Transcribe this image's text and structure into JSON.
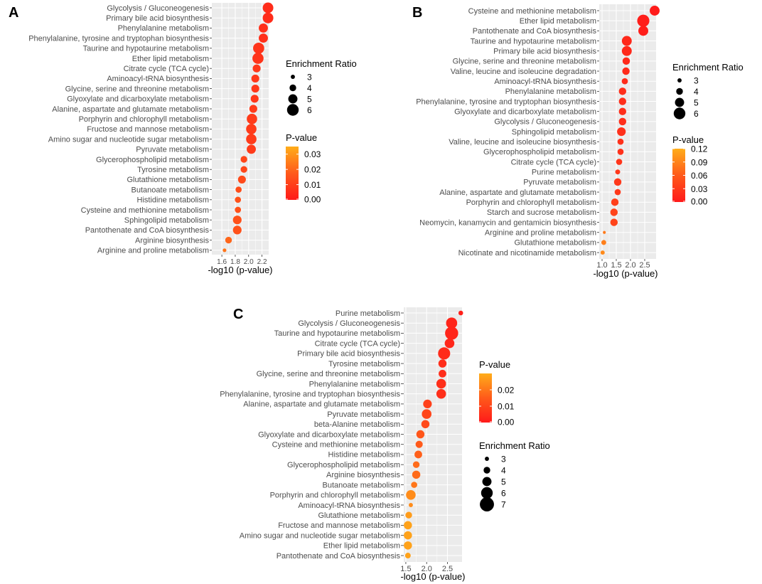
{
  "colors": {
    "panel_bg": "#ebebeb",
    "grid": "#ffffff",
    "gradient_low": "#ff1a1a",
    "gradient_mid": "#ff5a1a",
    "gradient_high": "#ffad1a",
    "axis_text": "#4d4d4d",
    "title_text": "#000000"
  },
  "chart_data": [
    {
      "panel": "A",
      "type": "scatter",
      "title": "",
      "xlabel": "-log10 (p-value)",
      "ylabel": "",
      "xlim": [
        1.45,
        2.3
      ],
      "x_ticks": [
        1.6,
        1.8,
        2.0,
        2.2
      ],
      "x_tick_labels": [
        "1.6",
        "1.8",
        "2.0",
        "2.2"
      ],
      "size_legend_title": "Enrichment Ratio",
      "size_legend": [
        3,
        4,
        5,
        6
      ],
      "color_legend_title": "P-value",
      "color_range": [
        0,
        0.035
      ],
      "color_legend_ticks": [
        "0.03",
        "0.02",
        "0.01",
        "0.00"
      ],
      "color_legend_values": [
        0.03,
        0.02,
        0.01,
        0.0
      ],
      "pathways": [
        "Glycolysis / Gluconeogenesis",
        "Primary bile acid biosynthesis",
        "Phenylalanine metabolism",
        "Phenylalanine, tyrosine and tryptophan biosynthesis",
        "Taurine and hypotaurine metabolism",
        "Ether lipid metabolism",
        "Citrate cycle (TCA cycle)",
        "Aminoacyl-tRNA biosynthesis",
        "Glycine, serine and threonine metabolism",
        "Glyoxylate and dicarboxylate metabolism",
        "Alanine, aspartate and glutamate metabolism",
        "Porphyrin and chlorophyll metabolism",
        "Fructose and mannose metabolism",
        "Amino sugar and nucleotide sugar metabolism",
        "Pyruvate metabolism",
        "Glycerophospholipid metabolism",
        "Tyrosine metabolism",
        "Glutathione metabolism",
        "Butanoate metabolism",
        "Histidine metabolism",
        "Cysteine and methionine metabolism",
        "Sphingolipid metabolism",
        "Pantothenate and CoA biosynthesis",
        "Arginine biosynthesis",
        "Arginine and proline metabolism"
      ],
      "x": [
        2.29,
        2.29,
        2.22,
        2.22,
        2.15,
        2.14,
        2.12,
        2.1,
        2.1,
        2.09,
        2.07,
        2.05,
        2.04,
        2.04,
        2.04,
        1.93,
        1.93,
        1.9,
        1.85,
        1.84,
        1.84,
        1.83,
        1.83,
        1.7,
        1.64
      ],
      "enrichment": [
        5.6,
        5.6,
        5.0,
        5.0,
        5.8,
        5.8,
        4.5,
        4.5,
        4.5,
        4.5,
        4.5,
        5.5,
        5.5,
        5.5,
        5.0,
        4.0,
        4.0,
        4.5,
        3.8,
        3.8,
        3.8,
        4.8,
        4.8,
        4.0,
        2.8
      ],
      "pvalue": [
        0.005,
        0.005,
        0.006,
        0.006,
        0.007,
        0.007,
        0.008,
        0.008,
        0.008,
        0.008,
        0.009,
        0.009,
        0.009,
        0.009,
        0.009,
        0.012,
        0.012,
        0.013,
        0.014,
        0.015,
        0.015,
        0.015,
        0.015,
        0.02,
        0.023
      ]
    },
    {
      "panel": "B",
      "type": "scatter",
      "title": "",
      "xlabel": "-log10 (p-value)",
      "ylabel": "",
      "xlim": [
        0.9,
        2.9
      ],
      "x_ticks": [
        1.0,
        1.5,
        2.0,
        2.5
      ],
      "x_tick_labels": [
        "1.0",
        "1.5",
        "2.0",
        "2.5"
      ],
      "size_legend_title": "Enrichment Ratio",
      "size_legend": [
        3,
        4,
        5,
        6
      ],
      "color_legend_title": "P-value",
      "color_range": [
        0,
        0.12
      ],
      "color_legend_ticks": [
        "0.12",
        "0.09",
        "0.06",
        "0.03",
        "0.00"
      ],
      "color_legend_values": [
        0.12,
        0.09,
        0.06,
        0.03,
        0.0
      ],
      "pathways": [
        "Cysteine and methionine metabolism",
        "Ether lipid metabolism",
        "Pantothenate and CoA biosynthesis",
        "Taurine and hypotaurine metabolism",
        "Primary bile acid biosynthesis",
        "Glycine, serine and threonine metabolism",
        "Valine, leucine and isoleucine degradation",
        "Aminoacyl-tRNA biosynthesis",
        "Phenylalanine metabolism",
        "Phenylalanine, tyrosine and tryptophan biosynthesis",
        "Glyoxylate and dicarboxylate metabolism",
        "Glycolysis / Gluconeogenesis",
        "Sphingolipid metabolism",
        "Valine, leucine and isoleucine biosynthesis",
        "Glycerophospholipid metabolism",
        "Citrate cycle (TCA cycle)",
        "Purine metabolism",
        "Pyruvate metabolism",
        "Alanine, aspartate and glutamate metabolism",
        "Porphyrin and chlorophyll metabolism",
        "Starch and sucrose metabolism",
        "Neomycin, kanamycin and gentamicin biosynthesis",
        "Arginine and proline metabolism",
        "Glutathione metabolism",
        "Nicotinate and nicotinamide metabolism"
      ],
      "x": [
        2.85,
        2.45,
        2.45,
        1.87,
        1.87,
        1.85,
        1.84,
        1.8,
        1.72,
        1.72,
        1.72,
        1.72,
        1.68,
        1.65,
        1.65,
        1.6,
        1.55,
        1.55,
        1.55,
        1.45,
        1.42,
        1.42,
        1.08,
        1.06,
        1.02
      ],
      "enrichment": [
        5.3,
        6.2,
        5.3,
        5.3,
        5.3,
        4.3,
        4.3,
        3.8,
        4.3,
        4.3,
        4.3,
        4.3,
        4.8,
        3.8,
        3.8,
        3.8,
        3.3,
        4.3,
        3.8,
        4.3,
        4.3,
        4.3,
        2.5,
        3.3,
        3.0
      ],
      "pvalue": [
        0.001,
        0.004,
        0.004,
        0.013,
        0.013,
        0.014,
        0.015,
        0.016,
        0.019,
        0.019,
        0.019,
        0.019,
        0.021,
        0.022,
        0.022,
        0.025,
        0.028,
        0.028,
        0.028,
        0.035,
        0.038,
        0.038,
        0.083,
        0.087,
        0.095
      ]
    },
    {
      "panel": "C",
      "type": "scatter",
      "title": "",
      "xlabel": "-log10 (p-value)",
      "ylabel": "",
      "xlim": [
        1.45,
        2.85
      ],
      "x_ticks": [
        1.5,
        2.0,
        2.5
      ],
      "x_tick_labels": [
        "1.5",
        "2.0",
        "2.5"
      ],
      "size_legend_title": "Enrichment Ratio",
      "size_legend": [
        3,
        4,
        5,
        6,
        7
      ],
      "color_legend_title": "P-value",
      "color_range": [
        0,
        0.03
      ],
      "color_legend_ticks": [
        "0.02",
        "0.01",
        "0.00"
      ],
      "color_legend_values": [
        0.02,
        0.01,
        0.0
      ],
      "pathways": [
        "Purine metabolism",
        "Glycolysis / Gluconeogenesis",
        "Taurine and hypotaurine metabolism",
        "Citrate cycle (TCA cycle)",
        "Primary bile acid biosynthesis",
        "Tyrosine metabolism",
        "Glycine, serine and threonine metabolism",
        "Phenylalanine metabolism",
        "Phenylalanine, tyrosine and tryptophan biosynthesis",
        "Alanine, aspartate and glutamate metabolism",
        "Pyruvate metabolism",
        "beta-Alanine metabolism",
        "Glyoxylate and dicarboxylate metabolism",
        "Cysteine and methionine metabolism",
        "Histidine metabolism",
        "Glycerophospholipid metabolism",
        "Arginine biosynthesis",
        "Butanoate metabolism",
        "Porphyrin and chlorophyll metabolism",
        "Aminoacyl-tRNA biosynthesis",
        "Glutathione metabolism",
        "Fructose and mannose metabolism",
        "Amino sugar and nucleotide sugar metabolism",
        "Ether lipid metabolism",
        "Pantothenate and CoA biosynthesis"
      ],
      "x": [
        2.82,
        2.6,
        2.6,
        2.55,
        2.42,
        2.38,
        2.38,
        2.35,
        2.35,
        2.02,
        2.0,
        1.97,
        1.85,
        1.82,
        1.8,
        1.75,
        1.75,
        1.7,
        1.62,
        1.62,
        1.57,
        1.55,
        1.55,
        1.55,
        1.55
      ],
      "enrichment": [
        3.2,
        5.8,
        6.6,
        5.2,
        6.2,
        4.6,
        4.4,
        5.2,
        5.2,
        4.8,
        5.2,
        4.6,
        4.6,
        4.2,
        4.4,
        4.0,
        4.6,
        3.8,
        5.2,
        3.0,
        4.0,
        4.6,
        4.6,
        4.6,
        3.6
      ],
      "pvalue": [
        0.0015,
        0.0025,
        0.0025,
        0.003,
        0.004,
        0.0045,
        0.0045,
        0.005,
        0.005,
        0.009,
        0.01,
        0.011,
        0.014,
        0.015,
        0.016,
        0.018,
        0.018,
        0.02,
        0.024,
        0.024,
        0.027,
        0.028,
        0.028,
        0.028,
        0.028
      ]
    }
  ]
}
